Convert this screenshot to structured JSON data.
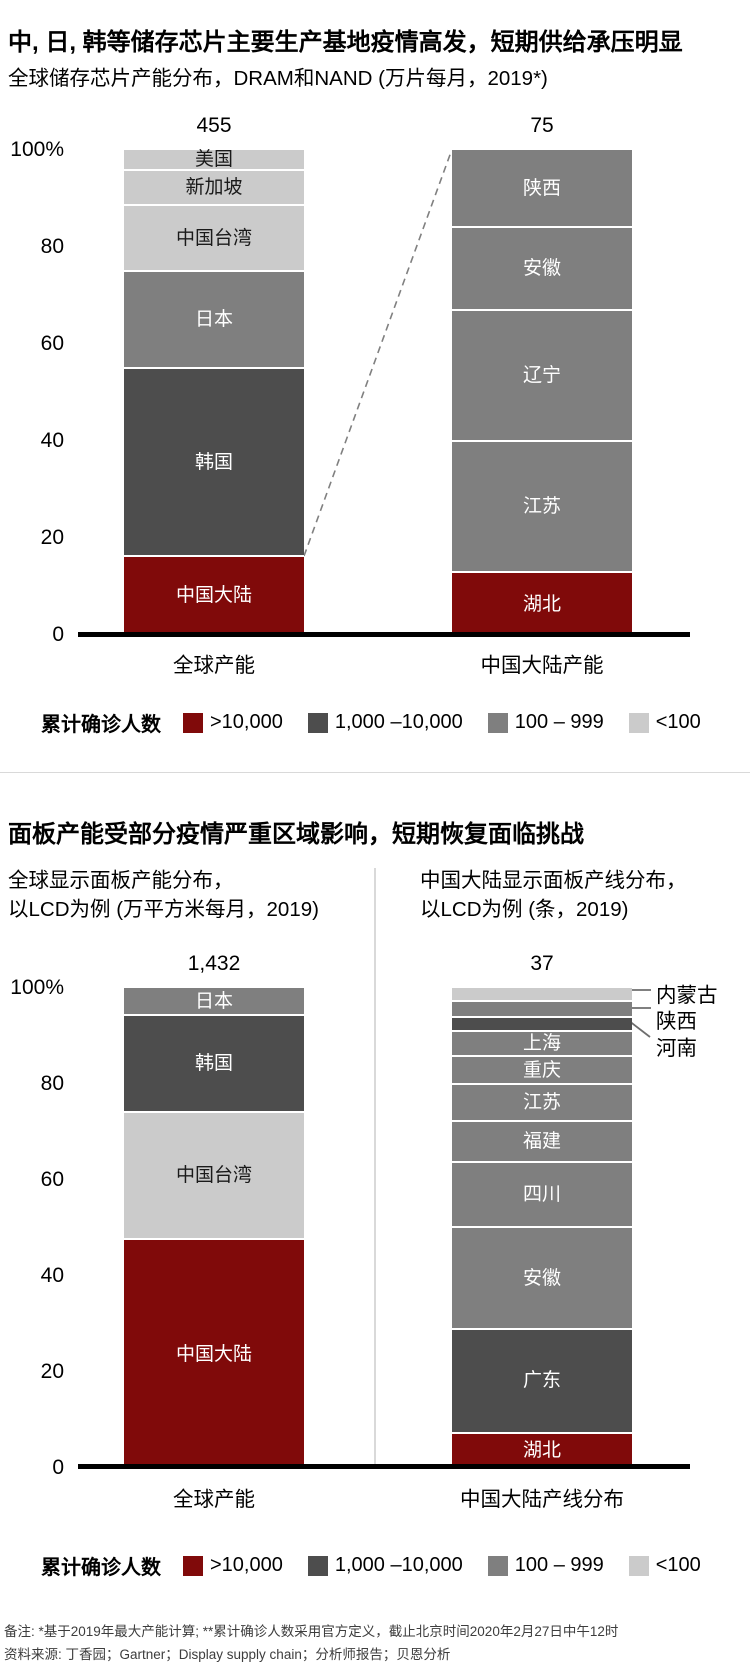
{
  "section1": {
    "title": "中, 日, 韩等储存芯片主要生产基地疫情高发，短期供给承压明显",
    "subtitle": "全球储存芯片产能分布，DRAM和NAND (万片每月，2019*)"
  },
  "section2": {
    "title": "面板产能受部分疫情严重区域影响，短期恢复面临挑战",
    "subtitle_left": [
      "全球显示面板产能分布，",
      "以LCD为例 (万平方米每月，2019)"
    ],
    "subtitle_right": [
      "中国大陆显示面板产线分布，",
      "以LCD为例 (条，2019)"
    ]
  },
  "legend": {
    "title": "累计确诊人数",
    "items": [
      {
        "label": ">10,000",
        "color_key": "gt10k"
      },
      {
        "label": "1,000 –10,000",
        "color_key": "b1k_10k"
      },
      {
        "label": "100 – 999",
        "color_key": "b100_999"
      },
      {
        "label": "<100",
        "color_key": "lt100"
      }
    ]
  },
  "colors": {
    "gt10k": "#800a0a",
    "b1k_10k": "#4d4d4d",
    "b100_999": "#7f7f7f",
    "lt100": "#cbcbcb",
    "axis": "#000000",
    "divider": "#d9d9d9",
    "dashed_line": "#808080",
    "callout_line": "#808080"
  },
  "chart_data": [
    {
      "type": "bar",
      "stacked": "percent",
      "title": "全球储存芯片产能分布，DRAM和NAND (万片每月，2019*)",
      "ylim": [
        0,
        100
      ],
      "grid": false,
      "legend_meaning": "颜色表示各地区累计确诊人数区间",
      "yticks": [
        {
          "label": "100%",
          "value": 100
        },
        {
          "label": "80",
          "value": 80
        },
        {
          "label": "60",
          "value": 60
        },
        {
          "label": "40",
          "value": 40
        },
        {
          "label": "20",
          "value": 20
        },
        {
          "label": "0",
          "value": 0
        }
      ],
      "bars": [
        {
          "category": "全球产能",
          "total": "455",
          "segments": [
            {
              "label": "美国",
              "percent": 4,
              "bucket": "lt100",
              "label_inside": true
            },
            {
              "label": "新加坡",
              "percent": 7,
              "bucket": "lt100",
              "label_inside": true
            },
            {
              "label": "中国台湾",
              "percent": 13.5,
              "bucket": "lt100",
              "label_inside": true
            },
            {
              "label": "日本",
              "percent": 20,
              "bucket": "b100_999",
              "label_inside": true
            },
            {
              "label": "韩国",
              "percent": 39,
              "bucket": "b1k_10k",
              "label_inside": true
            },
            {
              "label": "中国大陆",
              "percent": 16.5,
              "bucket": "gt10k",
              "label_inside": true
            }
          ]
        },
        {
          "category": "中国大陆产能",
          "total": "75",
          "segments": [
            {
              "label": "陕西",
              "percent": 16,
              "bucket": "b100_999",
              "label_inside": true
            },
            {
              "label": "安徽",
              "percent": 17,
              "bucket": "b100_999",
              "label_inside": true
            },
            {
              "label": "辽宁",
              "percent": 27,
              "bucket": "b100_999",
              "label_inside": true
            },
            {
              "label": "江苏",
              "percent": 27,
              "bucket": "b100_999",
              "label_inside": true
            },
            {
              "label": "湖北",
              "percent": 13,
              "bucket": "gt10k",
              "label_inside": true
            }
          ]
        }
      ]
    },
    {
      "type": "bar",
      "stacked": "percent",
      "title": "全球显示面板产能分布与中国大陆显示面板产线分布，以LCD为例 (2019)",
      "ylim": [
        0,
        100
      ],
      "grid": false,
      "legend_meaning": "颜色表示各地区累计确诊人数区间",
      "yticks": [
        {
          "label": "100%",
          "value": 100
        },
        {
          "label": "80",
          "value": 80
        },
        {
          "label": "60",
          "value": 60
        },
        {
          "label": "40",
          "value": 40
        },
        {
          "label": "20",
          "value": 20
        },
        {
          "label": "0",
          "value": 0
        }
      ],
      "bars": [
        {
          "category": "全球产能",
          "total": "1,432",
          "segments": [
            {
              "label": "日本",
              "percent": 5.5,
              "bucket": "b100_999",
              "label_inside": true
            },
            {
              "label": "韩国",
              "percent": 20,
              "bucket": "b1k_10k",
              "label_inside": true
            },
            {
              "label": "中国台湾",
              "percent": 26.5,
              "bucket": "lt100",
              "label_inside": true
            },
            {
              "label": "中国大陆",
              "percent": 48,
              "bucket": "gt10k",
              "label_inside": true
            }
          ]
        },
        {
          "category": "中国大陆产线分布",
          "total": "37",
          "segments": [
            {
              "label": "内蒙古",
              "percent": 2.6,
              "bucket": "lt100",
              "label_inside": false
            },
            {
              "label": "陕西",
              "percent": 3,
              "bucket": "b100_999",
              "label_inside": false
            },
            {
              "label": "河南",
              "percent": 2.6,
              "bucket": "b1k_10k",
              "label_inside": false
            },
            {
              "label": "上海",
              "percent": 5,
              "bucket": "b100_999",
              "label_inside": true
            },
            {
              "label": "重庆",
              "percent": 5.8,
              "bucket": "b100_999",
              "label_inside": true
            },
            {
              "label": "江苏",
              "percent": 7.6,
              "bucket": "b100_999",
              "label_inside": true
            },
            {
              "label": "福建",
              "percent": 8.3,
              "bucket": "b100_999",
              "label_inside": true
            },
            {
              "label": "四川",
              "percent": 13.8,
              "bucket": "b100_999",
              "label_inside": true
            },
            {
              "label": "安徽",
              "percent": 21.8,
              "bucket": "b100_999",
              "label_inside": true
            },
            {
              "label": "广东",
              "percent": 22,
              "bucket": "b1k_10k",
              "label_inside": true
            },
            {
              "label": "湖北",
              "percent": 7.5,
              "bucket": "gt10k",
              "label_inside": true
            }
          ]
        }
      ]
    }
  ],
  "footnotes": {
    "note": "备注: *基于2019年最大产能计算; **累计确诊人数采用官方定义，截止北京时间2020年2月27日中午12时",
    "source": "资料来源: 丁香园；Gartner；Display supply chain；分析师报告；贝恩分析"
  }
}
